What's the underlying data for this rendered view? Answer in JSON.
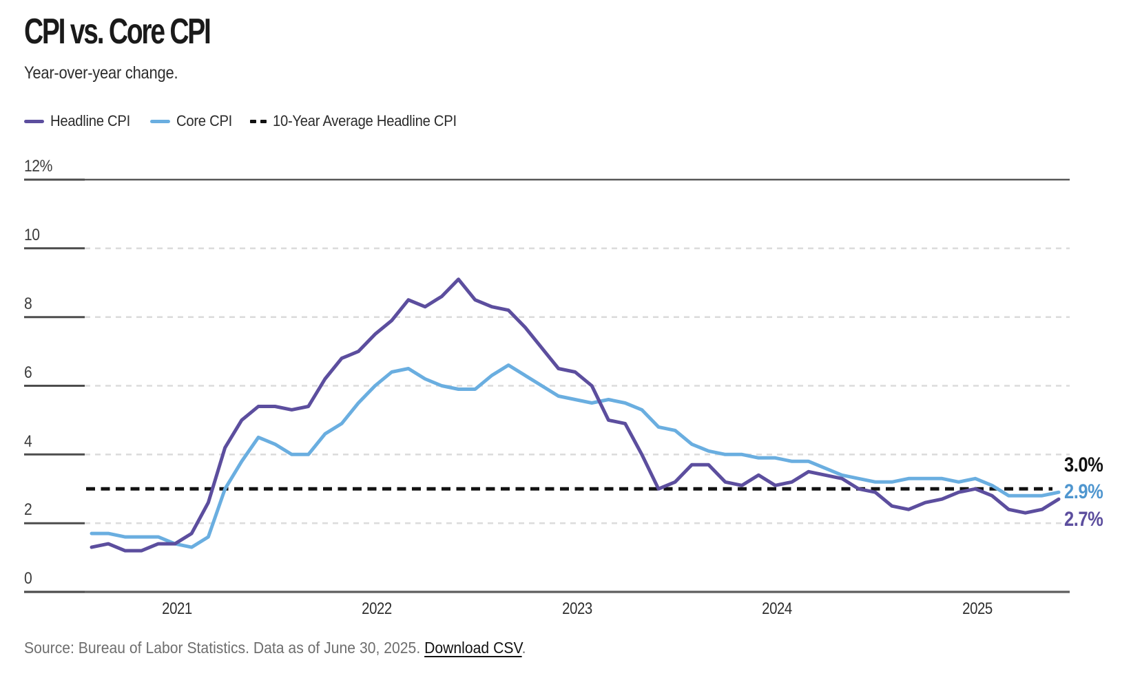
{
  "header": {
    "title": "CPI vs. Core CPI",
    "subtitle": "Year-over-year change."
  },
  "legend": {
    "items": [
      {
        "label": "Headline CPI",
        "color": "#5c4e9e",
        "swatch": "solid-line"
      },
      {
        "label": "Core CPI",
        "color": "#6aaee0",
        "swatch": "solid-line"
      },
      {
        "label": "10-Year Average Headline CPI",
        "color": "#121212",
        "swatch": "dashed-line"
      }
    ]
  },
  "axes": {
    "y": {
      "ticks": [
        {
          "value": 12,
          "label": "12%"
        },
        {
          "value": 10,
          "label": "10"
        },
        {
          "value": 8,
          "label": "8"
        },
        {
          "value": 6,
          "label": "6"
        },
        {
          "value": 4,
          "label": "4"
        },
        {
          "value": 2,
          "label": "2"
        },
        {
          "value": 0,
          "label": "0"
        }
      ]
    },
    "x": {
      "ticks": [
        {
          "label": "2021"
        },
        {
          "label": "2022"
        },
        {
          "label": "2023"
        },
        {
          "label": "2024"
        },
        {
          "label": "2025"
        }
      ]
    }
  },
  "annotations": {
    "avg": {
      "label": "3.0%",
      "color": "#111111"
    },
    "core": {
      "label": "2.9%",
      "color": "#4f96cf"
    },
    "headline": {
      "label": "2.7%",
      "color": "#5c4e9e"
    }
  },
  "source": {
    "prefix": "Source: Bureau of Labor Statistics. Data as of June 30, 2025. ",
    "link": "Download CSV",
    "suffix": "."
  },
  "chart_data": {
    "type": "line",
    "title": "CPI vs. Core CPI",
    "subtitle": "Year-over-year change.",
    "x_unit": "month",
    "x_start": "2020-08",
    "x_end": "2025-06",
    "xticks": [
      "2021",
      "2022",
      "2023",
      "2024",
      "2025"
    ],
    "ylim": [
      0,
      12
    ],
    "yticks": [
      12,
      10,
      8,
      6,
      4,
      2,
      0
    ],
    "ytick_labels": [
      "12%",
      "10",
      "8",
      "6",
      "4",
      "2",
      "0"
    ],
    "grid": "horizontal-dashed",
    "legend_position": "top-left",
    "series": [
      {
        "name": "Headline CPI",
        "color": "#5c4e9e",
        "end_label": "2.7%",
        "values": [
          1.3,
          1.4,
          1.2,
          1.2,
          1.4,
          1.4,
          1.7,
          2.6,
          4.2,
          5.0,
          5.4,
          5.4,
          5.3,
          5.4,
          6.2,
          6.8,
          7.0,
          7.5,
          7.9,
          8.5,
          8.3,
          8.6,
          9.1,
          8.5,
          8.3,
          8.2,
          7.7,
          7.1,
          6.5,
          6.4,
          6.0,
          5.0,
          4.9,
          4.0,
          3.0,
          3.2,
          3.7,
          3.7,
          3.2,
          3.1,
          3.4,
          3.1,
          3.2,
          3.5,
          3.4,
          3.3,
          3.0,
          2.9,
          2.5,
          2.4,
          2.6,
          2.7,
          2.9,
          3.0,
          2.8,
          2.4,
          2.3,
          2.4,
          2.7
        ]
      },
      {
        "name": "Core CPI",
        "color": "#6aaee0",
        "end_label": "2.9%",
        "values": [
          1.7,
          1.7,
          1.6,
          1.6,
          1.6,
          1.4,
          1.3,
          1.6,
          3.0,
          3.8,
          4.5,
          4.3,
          4.0,
          4.0,
          4.6,
          4.9,
          5.5,
          6.0,
          6.4,
          6.5,
          6.2,
          6.0,
          5.9,
          5.9,
          6.3,
          6.6,
          6.3,
          6.0,
          5.7,
          5.6,
          5.5,
          5.6,
          5.5,
          5.3,
          4.8,
          4.7,
          4.3,
          4.1,
          4.0,
          4.0,
          3.9,
          3.9,
          3.8,
          3.8,
          3.6,
          3.4,
          3.3,
          3.2,
          3.2,
          3.3,
          3.3,
          3.3,
          3.2,
          3.3,
          3.1,
          2.8,
          2.8,
          2.8,
          2.9
        ]
      },
      {
        "name": "10-Year Average Headline CPI",
        "type": "reference",
        "style": "dashed",
        "color": "#121212",
        "value": 3.0,
        "end_label": "3.0%"
      }
    ]
  }
}
